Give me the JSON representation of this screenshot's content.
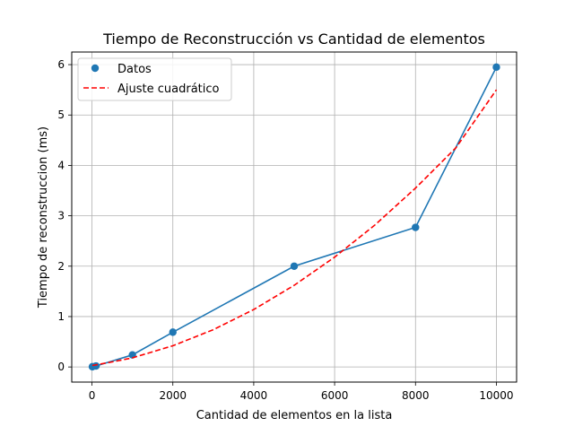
{
  "chart_data": {
    "type": "line",
    "title": "Tiempo de Reconstrucción vs Cantidad de elementos",
    "xlabel": "Cantidad de elementos en la lista",
    "ylabel": "Tiempo de reconstruccion (ms)",
    "xlim": [
      -500,
      10500
    ],
    "ylim": [
      -0.3,
      6.25
    ],
    "xticks": [
      0,
      2000,
      4000,
      6000,
      8000,
      10000
    ],
    "yticks": [
      0,
      1,
      2,
      3,
      4,
      5,
      6
    ],
    "grid": true,
    "legend_position": "top-left",
    "series": [
      {
        "name": "Datos",
        "style": "line-with-markers",
        "color": "#1f77b4",
        "x": [
          10,
          100,
          1000,
          2000,
          5000,
          8000,
          10000
        ],
        "y": [
          0.005,
          0.02,
          0.24,
          0.69,
          2.0,
          2.77,
          5.95
        ]
      },
      {
        "name": "Ajuste cuadrático",
        "style": "dashed",
        "color": "#ff0000",
        "fit": "quadratic",
        "x": [
          10,
          500,
          1000,
          2000,
          3000,
          4000,
          5000,
          6000,
          7000,
          8000,
          9000,
          10000
        ],
        "y": [
          0.03,
          0.1,
          0.18,
          0.42,
          0.74,
          1.14,
          1.62,
          2.18,
          2.82,
          3.55,
          4.35,
          5.5
        ]
      }
    ]
  }
}
